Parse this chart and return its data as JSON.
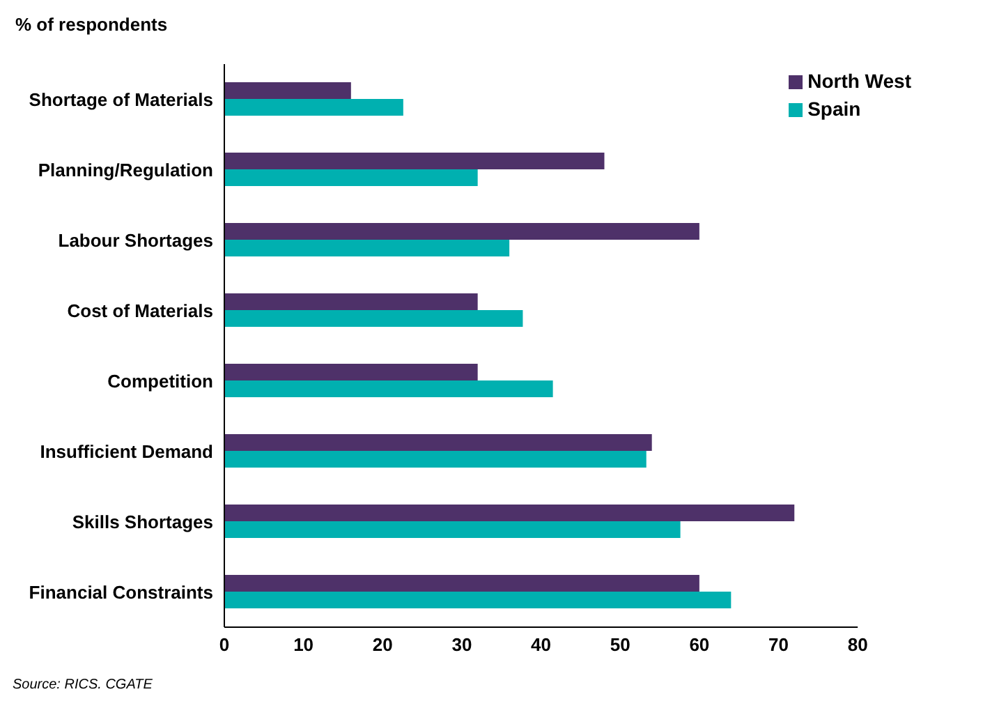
{
  "chart_data": {
    "type": "bar",
    "orientation": "horizontal",
    "title": "% of respondents",
    "categories": [
      "Shortage of Materials",
      "Planning/Regulation",
      "Labour Shortages",
      "Cost of Materials",
      "Competition",
      "Insufficient Demand",
      "Skills Shortages",
      "Financial Constraints"
    ],
    "series": [
      {
        "name": "North West",
        "color": "#4e3169",
        "values": [
          16,
          48,
          60,
          32,
          32,
          54,
          72,
          60
        ]
      },
      {
        "name": "Spain",
        "color": "#00b0b0",
        "values": [
          22.6,
          32,
          36,
          37.7,
          41.5,
          53.3,
          57.6,
          64
        ]
      }
    ],
    "xlim": [
      0,
      80
    ],
    "xticks": [
      0,
      10,
      20,
      30,
      40,
      50,
      60,
      70,
      80
    ],
    "grid": false,
    "legend": "top right",
    "annotations": [
      "Source: RICS. CGATE"
    ]
  }
}
